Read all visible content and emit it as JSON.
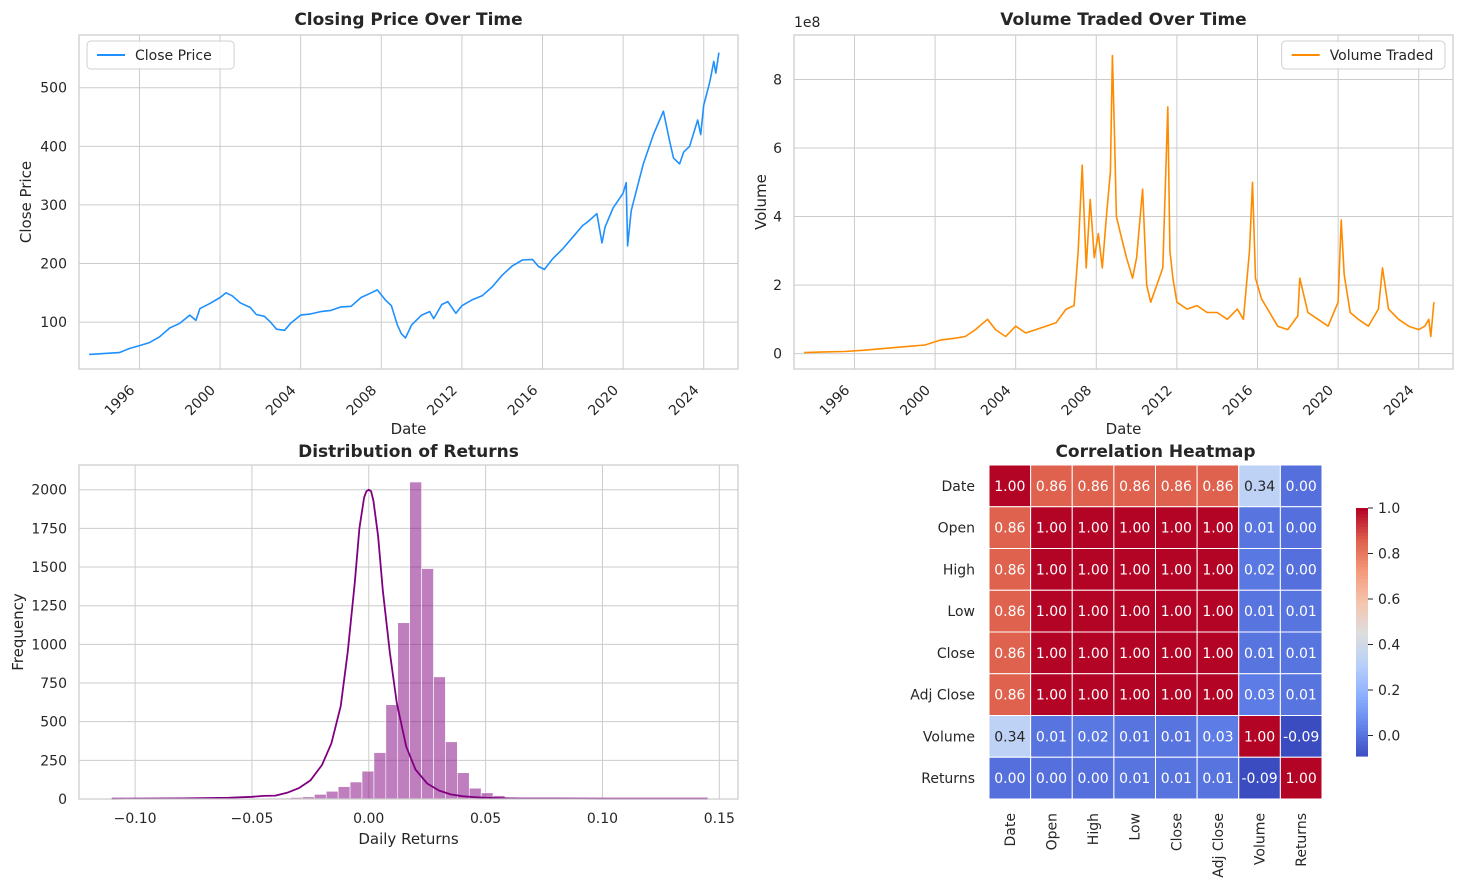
{
  "chart_data": [
    {
      "type": "line",
      "title": "Closing Price Over Time",
      "xlabel": "Date",
      "ylabel": "Close Price",
      "legend": "Close Price",
      "legend_position": "upper-left",
      "color": "#1e90ff",
      "xlim": [
        1993.0,
        2025.7
      ],
      "ylim": [
        20,
        590
      ],
      "xticks": [
        1996,
        2000,
        2004,
        2008,
        2012,
        2016,
        2020,
        2024
      ],
      "xtick_labels": [
        "1996",
        "2000",
        "2004",
        "2008",
        "2012",
        "2016",
        "2020",
        "2024"
      ],
      "yticks": [
        100,
        200,
        300,
        400,
        500
      ],
      "ytick_labels": [
        "100",
        "200",
        "300",
        "400",
        "500"
      ],
      "x": [
        1993.5,
        1994.0,
        1994.5,
        1995.0,
        1995.5,
        1996.0,
        1996.5,
        1997.0,
        1997.5,
        1998.0,
        1998.5,
        1998.8,
        1999.0,
        1999.5,
        2000.0,
        2000.3,
        2000.6,
        2001.0,
        2001.5,
        2001.8,
        2002.2,
        2002.5,
        2002.8,
        2003.2,
        2003.5,
        2004.0,
        2004.5,
        2005.0,
        2005.5,
        2006.0,
        2006.5,
        2007.0,
        2007.5,
        2007.8,
        2008.2,
        2008.5,
        2008.8,
        2009.0,
        2009.2,
        2009.5,
        2010.0,
        2010.4,
        2010.6,
        2011.0,
        2011.3,
        2011.7,
        2012.0,
        2012.5,
        2013.0,
        2013.5,
        2014.0,
        2014.5,
        2015.0,
        2015.5,
        2015.8,
        2016.1,
        2016.5,
        2017.0,
        2017.5,
        2018.0,
        2018.2,
        2018.7,
        2018.95,
        2019.1,
        2019.5,
        2020.0,
        2020.15,
        2020.22,
        2020.4,
        2020.7,
        2021.0,
        2021.5,
        2022.0,
        2022.3,
        2022.5,
        2022.8,
        2023.0,
        2023.3,
        2023.7,
        2023.85,
        2024.0,
        2024.3,
        2024.5,
        2024.6,
        2024.75
      ],
      "y": [
        45,
        46,
        47,
        48,
        55,
        60,
        65,
        75,
        90,
        98,
        112,
        103,
        123,
        132,
        142,
        150,
        145,
        133,
        125,
        113,
        110,
        100,
        88,
        86,
        98,
        112,
        114,
        118,
        120,
        126,
        127,
        142,
        150,
        155,
        138,
        128,
        95,
        80,
        73,
        95,
        112,
        118,
        106,
        130,
        135,
        115,
        128,
        138,
        145,
        160,
        180,
        196,
        206,
        207,
        195,
        190,
        208,
        225,
        245,
        265,
        270,
        285,
        235,
        262,
        295,
        320,
        338,
        230,
        290,
        330,
        370,
        420,
        460,
        410,
        380,
        370,
        390,
        400,
        445,
        420,
        470,
        510,
        545,
        525,
        560
      ]
    },
    {
      "type": "line",
      "title": "Volume Traded Over Time",
      "xlabel": "Date",
      "ylabel": "Volume",
      "offset_text": "1e8",
      "legend": "Volume Traded",
      "legend_position": "upper-right",
      "color": "#ff8c00",
      "xlim": [
        1993.0,
        2025.7
      ],
      "ylim": [
        -0.45,
        9.3
      ],
      "xticks": [
        1996,
        2000,
        2004,
        2008,
        2012,
        2016,
        2020,
        2024
      ],
      "xtick_labels": [
        "1996",
        "2000",
        "2004",
        "2008",
        "2012",
        "2016",
        "2020",
        "2024"
      ],
      "yticks": [
        0,
        2,
        4,
        6,
        8
      ],
      "ytick_labels": [
        "0",
        "2",
        "4",
        "6",
        "8"
      ],
      "x": [
        1993.5,
        1994.5,
        1995.5,
        1996.5,
        1997.5,
        1998.5,
        1999.5,
        2000.3,
        2001.0,
        2001.5,
        2002.0,
        2002.6,
        2003.0,
        2003.5,
        2004.0,
        2004.5,
        2005.0,
        2005.5,
        2006.0,
        2006.5,
        2006.9,
        2007.1,
        2007.3,
        2007.5,
        2007.7,
        2007.9,
        2008.1,
        2008.3,
        2008.5,
        2008.7,
        2008.8,
        2008.9,
        2009.0,
        2009.2,
        2009.5,
        2009.8,
        2010.0,
        2010.3,
        2010.5,
        2010.7,
        2011.0,
        2011.3,
        2011.55,
        2011.65,
        2011.8,
        2012.0,
        2012.5,
        2013.0,
        2013.5,
        2014.0,
        2014.5,
        2015.0,
        2015.3,
        2015.6,
        2015.75,
        2015.9,
        2016.2,
        2016.5,
        2017.0,
        2017.5,
        2018.0,
        2018.1,
        2018.5,
        2019.0,
        2019.5,
        2020.0,
        2020.15,
        2020.3,
        2020.6,
        2021.0,
        2021.5,
        2022.0,
        2022.2,
        2022.5,
        2023.0,
        2023.5,
        2024.0,
        2024.3,
        2024.5,
        2024.6,
        2024.75
      ],
      "y": [
        0.03,
        0.05,
        0.06,
        0.1,
        0.15,
        0.2,
        0.25,
        0.4,
        0.45,
        0.5,
        0.7,
        1.0,
        0.7,
        0.5,
        0.8,
        0.6,
        0.7,
        0.8,
        0.9,
        1.3,
        1.4,
        3.0,
        5.5,
        2.5,
        4.5,
        2.8,
        3.5,
        2.5,
        4.0,
        5.3,
        8.7,
        6.5,
        4.0,
        3.5,
        2.8,
        2.2,
        2.8,
        4.8,
        2.0,
        1.5,
        2.0,
        2.5,
        7.2,
        3.0,
        2.2,
        1.5,
        1.3,
        1.4,
        1.2,
        1.2,
        1.0,
        1.3,
        1.0,
        3.0,
        5.0,
        2.2,
        1.6,
        1.3,
        0.8,
        0.7,
        1.1,
        2.2,
        1.2,
        1.0,
        0.8,
        1.5,
        3.9,
        2.3,
        1.2,
        1.0,
        0.8,
        1.3,
        2.5,
        1.3,
        1.0,
        0.8,
        0.7,
        0.8,
        1.0,
        0.5,
        1.5
      ]
    },
    {
      "type": "histogram",
      "title": "Distribution of Returns",
      "xlabel": "Daily Returns",
      "ylabel": "Frequency",
      "color": "#800080",
      "bar_alpha": 0.5,
      "xlim": [
        -0.124,
        0.158
      ],
      "ylim": [
        0,
        2160
      ],
      "xticks": [
        -0.1,
        -0.05,
        0.0,
        0.05,
        0.1,
        0.15
      ],
      "xtick_labels": [
        "−0.10",
        "−0.05",
        "0.00",
        "0.05",
        "0.10",
        "0.15"
      ],
      "yticks": [
        0,
        250,
        500,
        750,
        1000,
        1250,
        1500,
        1750,
        2000
      ],
      "ytick_labels": [
        "0",
        "250",
        "500",
        "750",
        "1000",
        "1250",
        "1500",
        "1750",
        "2000"
      ],
      "bin_start": -0.11,
      "bin_width": 0.0051,
      "counts": [
        2,
        1,
        1,
        1,
        1,
        1,
        1,
        1,
        2,
        2,
        2,
        3,
        3,
        4,
        6,
        10,
        14,
        30,
        50,
        80,
        110,
        180,
        300,
        610,
        1140,
        2050,
        1490,
        790,
        370,
        170,
        70,
        40,
        22,
        12,
        8,
        5,
        3,
        2,
        2,
        1,
        1,
        1,
        1,
        1,
        1,
        1,
        1,
        1,
        1,
        2
      ],
      "kde_x": [
        -0.11,
        -0.08,
        -0.06,
        -0.05,
        -0.045,
        -0.04,
        -0.035,
        -0.03,
        -0.025,
        -0.02,
        -0.016,
        -0.012,
        -0.009,
        -0.006,
        -0.004,
        -0.002,
        -0.001,
        0.0,
        0.001,
        0.002,
        0.004,
        0.006,
        0.009,
        0.012,
        0.016,
        0.02,
        0.025,
        0.03,
        0.035,
        0.04,
        0.045,
        0.05,
        0.06,
        0.08,
        0.1,
        0.145
      ],
      "kde_y": [
        2,
        4,
        8,
        14,
        20,
        22,
        40,
        70,
        120,
        220,
        360,
        600,
        950,
        1400,
        1750,
        1950,
        1990,
        2000,
        1990,
        1930,
        1700,
        1350,
        950,
        620,
        340,
        190,
        100,
        55,
        30,
        18,
        12,
        8,
        4,
        3,
        2,
        2
      ]
    },
    {
      "type": "heatmap",
      "title": "Correlation Heatmap",
      "labels": [
        "Date",
        "Open",
        "High",
        "Low",
        "Close",
        "Adj Close",
        "Volume",
        "Returns"
      ],
      "matrix": [
        [
          1.0,
          0.86,
          0.86,
          0.86,
          0.86,
          0.86,
          0.34,
          0.0
        ],
        [
          0.86,
          1.0,
          1.0,
          1.0,
          1.0,
          1.0,
          0.01,
          0.0
        ],
        [
          0.86,
          1.0,
          1.0,
          1.0,
          1.0,
          1.0,
          0.02,
          0.0
        ],
        [
          0.86,
          1.0,
          1.0,
          1.0,
          1.0,
          1.0,
          0.01,
          0.01
        ],
        [
          0.86,
          1.0,
          1.0,
          1.0,
          1.0,
          1.0,
          0.01,
          0.01
        ],
        [
          0.86,
          1.0,
          1.0,
          1.0,
          1.0,
          1.0,
          0.03,
          0.01
        ],
        [
          0.34,
          0.01,
          0.02,
          0.01,
          0.01,
          0.03,
          1.0,
          -0.09
        ],
        [
          0.0,
          0.0,
          0.0,
          0.01,
          0.01,
          0.01,
          -0.09,
          1.0
        ]
      ],
      "cell_labels": [
        [
          "1.00",
          "0.86",
          "0.86",
          "0.86",
          "0.86",
          "0.86",
          "0.34",
          "0.00"
        ],
        [
          "0.86",
          "1.00",
          "1.00",
          "1.00",
          "1.00",
          "1.00",
          "0.01",
          "0.00"
        ],
        [
          "0.86",
          "1.00",
          "1.00",
          "1.00",
          "1.00",
          "1.00",
          "0.02",
          "0.00"
        ],
        [
          "0.86",
          "1.00",
          "1.00",
          "1.00",
          "1.00",
          "1.00",
          "0.01",
          "0.01"
        ],
        [
          "0.86",
          "1.00",
          "1.00",
          "1.00",
          "1.00",
          "1.00",
          "0.01",
          "0.01"
        ],
        [
          "0.86",
          "1.00",
          "1.00",
          "1.00",
          "1.00",
          "1.00",
          "0.03",
          "0.01"
        ],
        [
          "0.34",
          "0.01",
          "0.02",
          "0.01",
          "0.01",
          "0.03",
          "1.00",
          "-0.09"
        ],
        [
          "0.00",
          "0.00",
          "0.00",
          "0.01",
          "0.01",
          "0.01",
          "-0.09",
          "1.00"
        ]
      ],
      "colormap": "coolwarm",
      "vmin": -0.09,
      "vmax": 1.0,
      "colorbar_ticks": [
        0.0,
        0.2,
        0.4,
        0.6,
        0.8,
        1.0
      ],
      "colorbar_tick_labels": [
        "0.0",
        "0.2",
        "0.4",
        "0.6",
        "0.8",
        "1.0"
      ]
    }
  ]
}
